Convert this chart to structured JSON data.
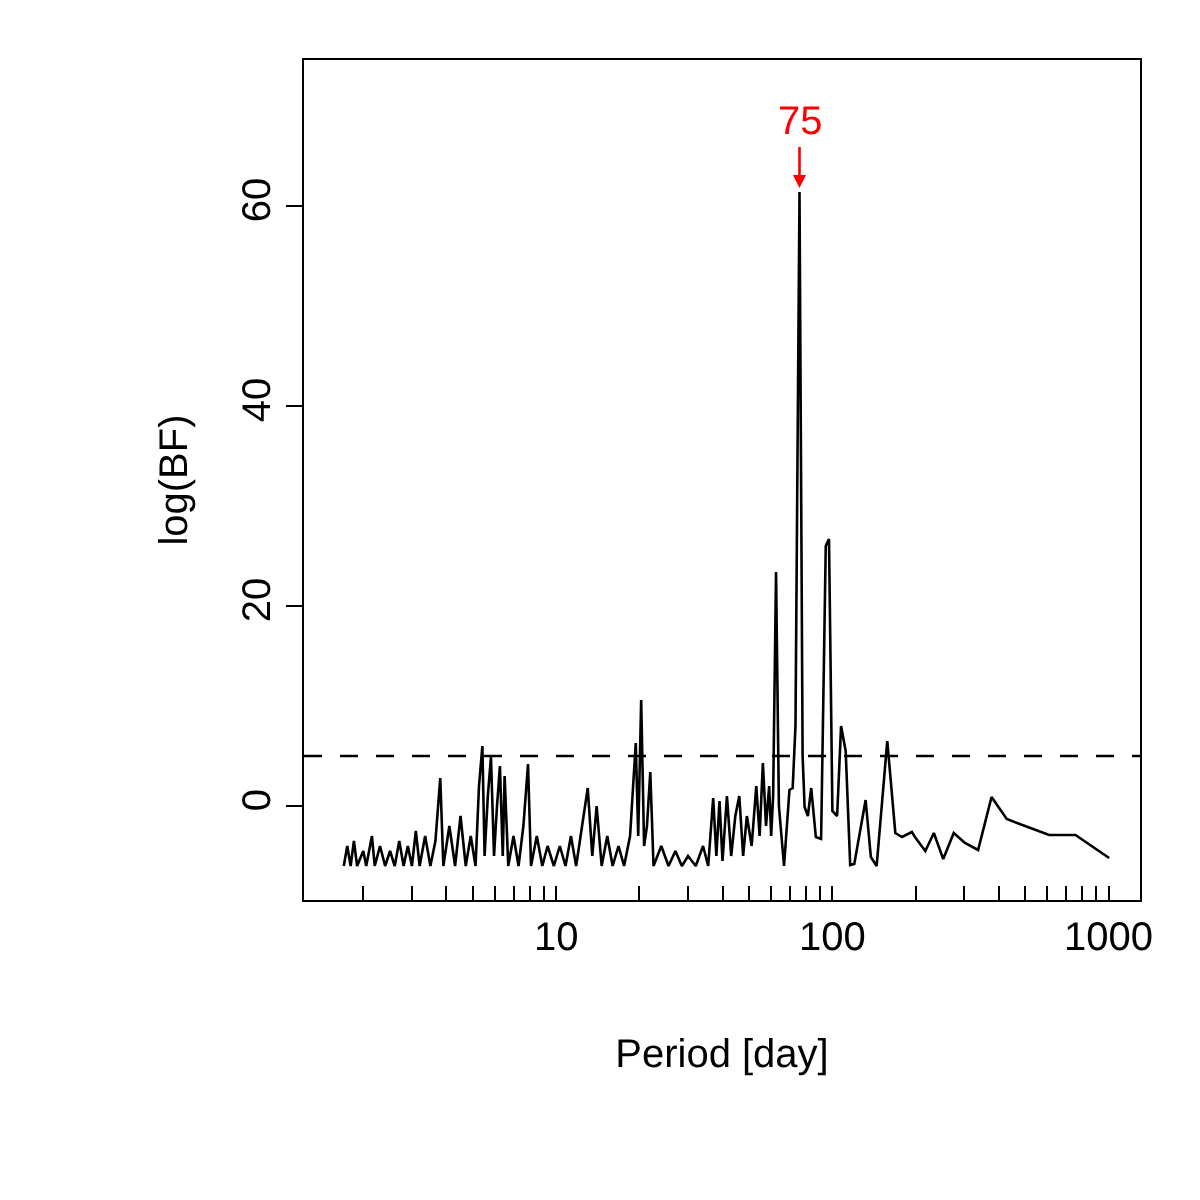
{
  "chart_data": {
    "type": "line",
    "xlabel": "Period [day]",
    "ylabel": "log(BF)",
    "log": "x",
    "marker": "none",
    "line_style": "solid",
    "xlim": [
      1.22,
      1300
    ],
    "ylim": [
      -9.4,
      74.6
    ],
    "xticks": [
      {
        "value": 2,
        "label": null
      },
      {
        "value": 3,
        "label": null
      },
      {
        "value": 4,
        "label": null
      },
      {
        "value": 5,
        "label": null
      },
      {
        "value": 6,
        "label": null
      },
      {
        "value": 7,
        "label": null
      },
      {
        "value": 8,
        "label": null
      },
      {
        "value": 9,
        "label": null
      },
      10,
      {
        "value": 20,
        "label": null
      },
      {
        "value": 30,
        "label": null
      },
      {
        "value": 40,
        "label": null
      },
      {
        "value": 50,
        "label": null
      },
      {
        "value": 60,
        "label": null
      },
      {
        "value": 70,
        "label": null
      },
      {
        "value": 80,
        "label": null
      },
      {
        "value": 90,
        "label": null
      },
      100,
      {
        "value": 200,
        "label": null
      },
      {
        "value": 300,
        "label": null
      },
      {
        "value": 400,
        "label": null
      },
      {
        "value": 500,
        "label": null
      },
      {
        "value": 600,
        "label": null
      },
      {
        "value": 700,
        "label": null
      },
      {
        "value": 800,
        "label": null
      },
      {
        "value": 900,
        "label": null
      },
      1000
    ],
    "yticks": [
      0,
      20,
      40,
      60
    ],
    "x": [
      1.7,
      1.75,
      1.8,
      1.85,
      1.9,
      2.0,
      2.05,
      2.15,
      2.2,
      2.3,
      2.4,
      2.5,
      2.6,
      2.7,
      2.8,
      2.9,
      3.0,
      3.1,
      3.2,
      3.35,
      3.5,
      3.65,
      3.8,
      3.9,
      4.1,
      4.3,
      4.5,
      4.7,
      4.9,
      5.1,
      5.25,
      5.4,
      5.5,
      5.65,
      5.8,
      5.95,
      6.1,
      6.25,
      6.4,
      6.5,
      6.7,
      7.0,
      7.3,
      7.6,
      7.9,
      8.1,
      8.5,
      8.9,
      9.3,
      9.8,
      10.3,
      10.8,
      11.3,
      11.8,
      12.4,
      13,
      13.5,
      14,
      14.6,
      15.3,
      16,
      16.8,
      17.6,
      18.5,
      19.4,
      19.8,
      20.3,
      20.8,
      21.3,
      21.9,
      22.5,
      24,
      25.5,
      27,
      28.5,
      30,
      32,
      34,
      35.5,
      37,
      38,
      39,
      40,
      41.5,
      43,
      44.5,
      46,
      47.5,
      49,
      51,
      53,
      54.5,
      56,
      57.5,
      59,
      60,
      61,
      62.5,
      64,
      66.8,
      69.9,
      71.8,
      73.5,
      76,
      78,
      79.3,
      81.5,
      83.8,
      87.1,
      91,
      94.6,
      97.2,
      100,
      104,
      107.5,
      111.7,
      116,
      120,
      131.9,
      137.8,
      144.6,
      158,
      169,
      178.6,
      194,
      199,
      217,
      233,
      252,
      275,
      302,
      337,
      377,
      428,
      510,
      609,
      759,
      1005
    ],
    "series": [
      {
        "color": "#000000",
        "values": [
          -6,
          -4,
          -6,
          -3.5,
          -6,
          -4.5,
          -6,
          -3,
          -6,
          -4,
          -6,
          -4.5,
          -6,
          -3.5,
          -6,
          -4,
          -6,
          -2.5,
          -6,
          -3,
          -6,
          -3.5,
          2.8,
          -6,
          -2,
          -6,
          -1,
          -6,
          -3,
          -6,
          2,
          6,
          -5,
          1,
          4.9,
          -5,
          0,
          4,
          -5,
          3,
          -6,
          -3,
          -6,
          -2,
          4.2,
          -6,
          -3,
          -6,
          -4,
          -6,
          -4,
          -6,
          -3,
          -6,
          -2,
          1.8,
          -5,
          0,
          -6,
          -3,
          -6,
          -4,
          -6,
          -3,
          6.3,
          -3,
          10.6,
          -4,
          -2,
          3.4,
          -6,
          -4,
          -6,
          -4.5,
          -6,
          -5,
          -6,
          -4,
          -6,
          0.8,
          -5,
          0.5,
          -5.5,
          1,
          -5,
          -1,
          1,
          -5,
          -1,
          -4,
          2,
          -3,
          4.3,
          -2,
          2,
          -3,
          1,
          23.4,
          0,
          -6,
          1.6,
          1.8,
          8,
          61.4,
          5,
          -0.1,
          -1,
          1.8,
          -3.1,
          -3.3,
          26,
          26.7,
          -0.5,
          -1,
          8,
          5.5,
          -5.9,
          -5.8,
          0.6,
          -5.1,
          -6,
          6.5,
          -2.7,
          -3.1,
          -2.6,
          -3.1,
          -4.5,
          -2.7,
          -5.3,
          -2.7,
          -3.7,
          -4.4,
          0.9,
          -1.3,
          -2.1,
          -2.9,
          -2.9,
          -5.2
        ]
      }
    ],
    "ref_lines": [
      {
        "axis": "y",
        "value": 5,
        "line_style": "dashed",
        "color": "#000000"
      }
    ],
    "annotations": [
      {
        "text": "75",
        "x": 76,
        "y": 61.4
      }
    ]
  }
}
